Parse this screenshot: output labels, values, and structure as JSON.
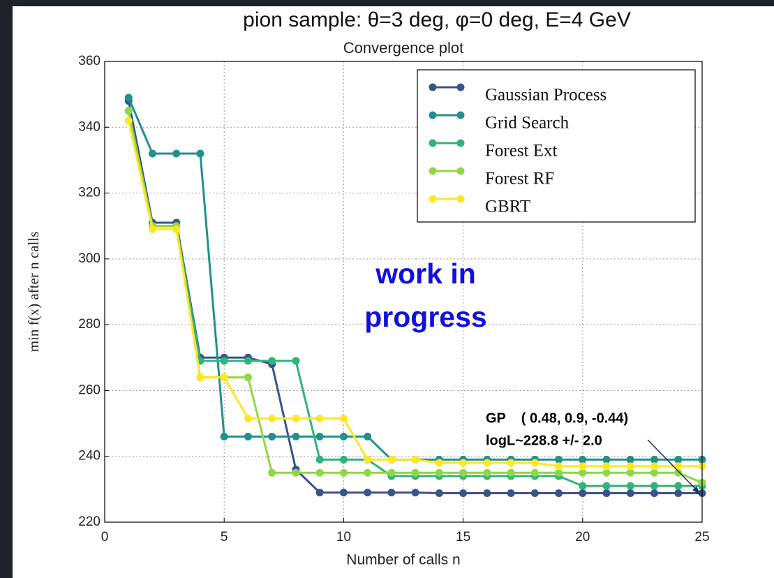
{
  "chart_data": {
    "type": "line",
    "heading": "pion sample: θ=3 deg, φ=0 deg, E=4 GeV",
    "title": "Convergence plot",
    "x_label": "Number of calls n",
    "y_label": "min f(x) after n calls",
    "x": [
      1,
      2,
      3,
      4,
      5,
      6,
      7,
      8,
      9,
      10,
      11,
      12,
      13,
      14,
      15,
      16,
      17,
      18,
      19,
      20,
      21,
      22,
      23,
      24,
      25
    ],
    "series": [
      {
        "name": "Gaussian Process",
        "color": "#3b528b",
        "values": [
          348,
          311,
          311,
          270,
          270,
          270,
          268,
          236,
          229,
          229,
          229,
          229,
          229,
          228.8,
          228.8,
          228.8,
          228.8,
          228.8,
          228.8,
          228.8,
          228.8,
          228.8,
          228.8,
          228.8,
          228.8
        ]
      },
      {
        "name": "Grid Search",
        "color": "#21918c",
        "values": [
          349,
          332,
          332,
          332,
          246,
          246,
          246,
          246,
          246,
          246,
          246,
          239,
          239,
          239,
          239,
          239,
          239,
          239,
          239,
          239,
          239,
          239,
          239,
          239,
          239
        ]
      },
      {
        "name": "Forest Ext",
        "color": "#2fb47c",
        "values": [
          345,
          310,
          310,
          269,
          269,
          269,
          269,
          269,
          239,
          239,
          239,
          234,
          234,
          234,
          234,
          234,
          234,
          234,
          234,
          231,
          231,
          231,
          231,
          231,
          231
        ]
      },
      {
        "name": "Forest RF",
        "color": "#8fd744",
        "values": [
          345,
          310,
          310,
          264,
          264,
          264,
          235,
          235,
          235,
          235,
          235,
          235,
          235,
          235,
          235,
          235,
          235,
          235,
          235,
          235,
          235,
          235,
          235,
          235,
          232
        ]
      },
      {
        "name": "GBRT",
        "color": "#fde725",
        "values": [
          342,
          309,
          309,
          264,
          264,
          251.5,
          251.5,
          251.5,
          251.5,
          251.5,
          239,
          239,
          239,
          238,
          238,
          238,
          238,
          238,
          237,
          237,
          237,
          237,
          237,
          237,
          237
        ]
      }
    ],
    "xlim": [
      0,
      25
    ],
    "xticks": [
      0,
      5,
      10,
      15,
      20,
      25
    ],
    "ylim": [
      220,
      360
    ],
    "yticks": [
      220,
      240,
      260,
      280,
      300,
      320,
      340,
      360
    ],
    "grid": true,
    "legend": "upper right",
    "annotations": [
      "work in",
      "progress",
      "GP    ( 0.48, 0.9, -0.44)",
      "logL~228.8 +/- 2.0"
    ]
  }
}
